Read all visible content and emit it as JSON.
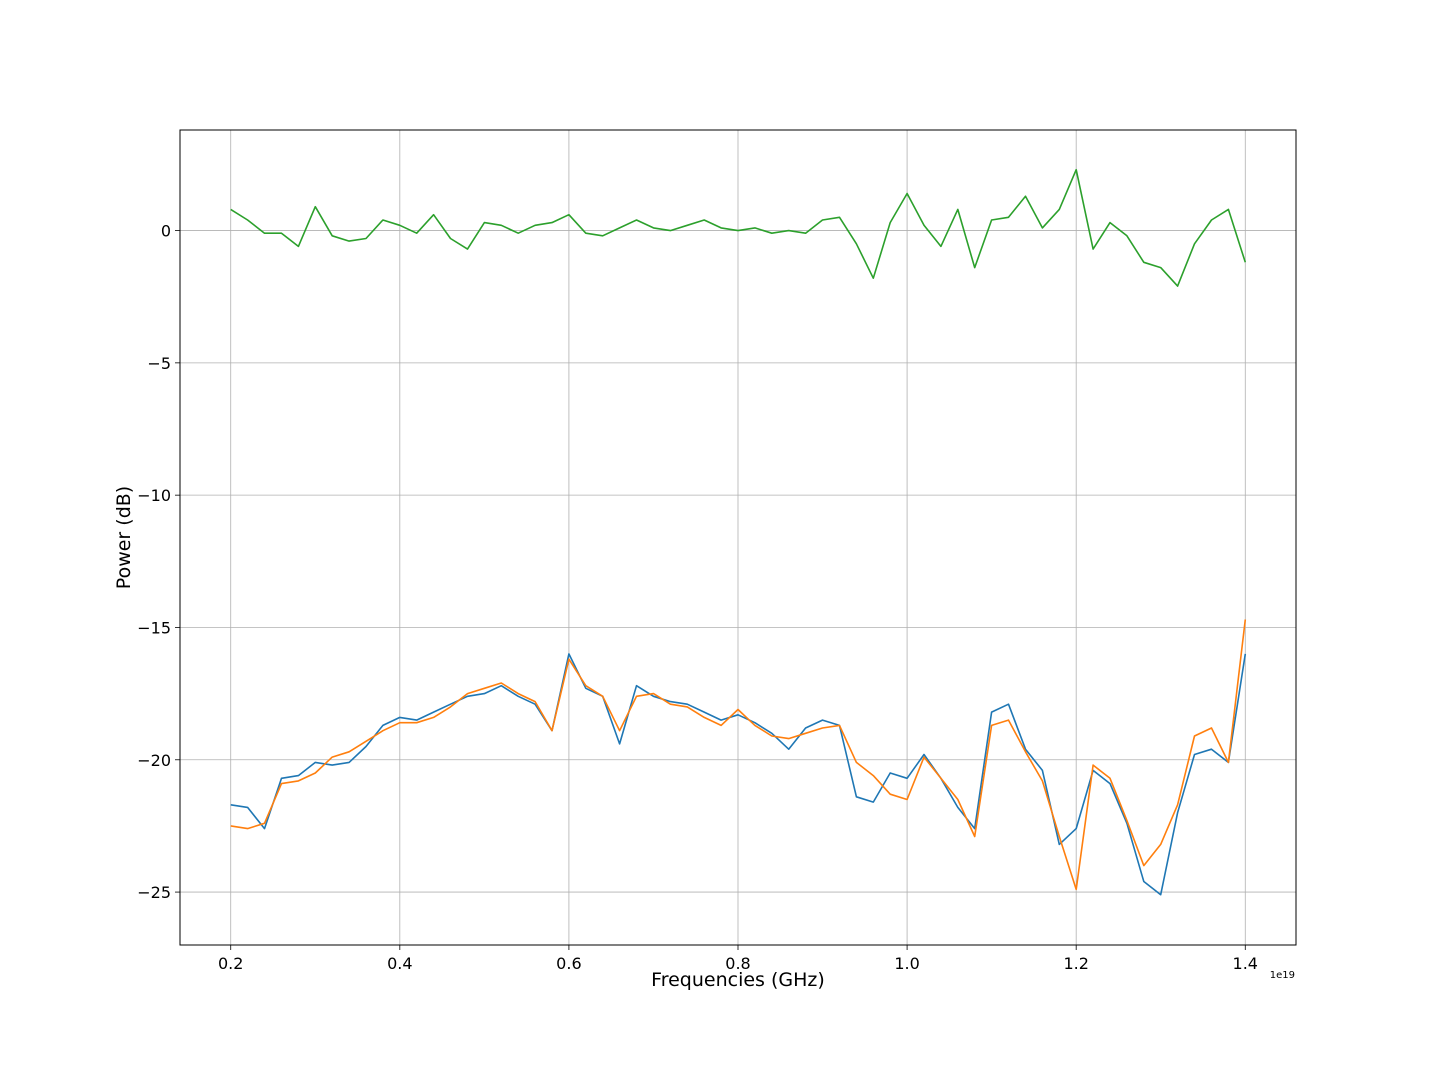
{
  "chart_data": {
    "type": "line",
    "xlabel": "Frequencies (GHz)",
    "ylabel": "Power (dB)",
    "x_offset_label": "1e19",
    "xlim": [
      0.14,
      1.46
    ],
    "ylim": [
      -27.0,
      3.8
    ],
    "grid": true,
    "x_ticks": [
      0.2,
      0.4,
      0.6,
      0.8,
      1.0,
      1.2,
      1.4
    ],
    "x_tick_labels": [
      "0.2",
      "0.4",
      "0.6",
      "0.8",
      "1.0",
      "1.2",
      "1.4"
    ],
    "y_ticks": [
      0,
      -5,
      -10,
      -15,
      -20,
      -25
    ],
    "y_tick_labels": [
      "0",
      "−5",
      "−10",
      "−15",
      "−20",
      "−25"
    ],
    "series": [
      {
        "color": "#1f77b4",
        "x": [
          0.2,
          0.22,
          0.24,
          0.26,
          0.28,
          0.3,
          0.32,
          0.34,
          0.36,
          0.38,
          0.4,
          0.42,
          0.44,
          0.46,
          0.48,
          0.5,
          0.52,
          0.54,
          0.56,
          0.58,
          0.6,
          0.62,
          0.64,
          0.66,
          0.68,
          0.7,
          0.72,
          0.74,
          0.76,
          0.78,
          0.8,
          0.82,
          0.84,
          0.86,
          0.88,
          0.9,
          0.92,
          0.94,
          0.96,
          0.98,
          1.0,
          1.02,
          1.04,
          1.06,
          1.08,
          1.1,
          1.12,
          1.14,
          1.16,
          1.18,
          1.2,
          1.22,
          1.24,
          1.26,
          1.28,
          1.3,
          1.32,
          1.34,
          1.36,
          1.38,
          1.4
        ],
        "values": [
          -21.7,
          -21.8,
          -22.6,
          -20.7,
          -20.6,
          -20.1,
          -20.2,
          -20.1,
          -19.5,
          -18.7,
          -18.4,
          -18.5,
          -18.2,
          -17.9,
          -17.6,
          -17.5,
          -17.2,
          -17.6,
          -17.9,
          -18.9,
          -16.0,
          -17.3,
          -17.6,
          -19.4,
          -17.2,
          -17.6,
          -17.8,
          -17.9,
          -18.2,
          -18.5,
          -18.3,
          -18.6,
          -19.0,
          -19.6,
          -18.8,
          -18.5,
          -18.7,
          -21.4,
          -21.6,
          -20.5,
          -20.7,
          -19.8,
          -20.7,
          -21.8,
          -22.6,
          -18.2,
          -17.9,
          -19.6,
          -20.4,
          -23.2,
          -22.6,
          -20.4,
          -20.9,
          -22.4,
          -24.6,
          -25.1,
          -22.0,
          -19.8,
          -19.6,
          -20.1,
          -16.0
        ]
      },
      {
        "color": "#ff7f0e",
        "x": [
          0.2,
          0.22,
          0.24,
          0.26,
          0.28,
          0.3,
          0.32,
          0.34,
          0.36,
          0.38,
          0.4,
          0.42,
          0.44,
          0.46,
          0.48,
          0.5,
          0.52,
          0.54,
          0.56,
          0.58,
          0.6,
          0.62,
          0.64,
          0.66,
          0.68,
          0.7,
          0.72,
          0.74,
          0.76,
          0.78,
          0.8,
          0.82,
          0.84,
          0.86,
          0.88,
          0.9,
          0.92,
          0.94,
          0.96,
          0.98,
          1.0,
          1.02,
          1.04,
          1.06,
          1.08,
          1.1,
          1.12,
          1.14,
          1.16,
          1.18,
          1.2,
          1.22,
          1.24,
          1.26,
          1.28,
          1.3,
          1.32,
          1.34,
          1.36,
          1.38,
          1.4
        ],
        "values": [
          -22.5,
          -22.6,
          -22.4,
          -20.9,
          -20.8,
          -20.5,
          -19.9,
          -19.7,
          -19.3,
          -18.9,
          -18.6,
          -18.6,
          -18.4,
          -18.0,
          -17.5,
          -17.3,
          -17.1,
          -17.5,
          -17.8,
          -18.9,
          -16.2,
          -17.2,
          -17.6,
          -18.9,
          -17.6,
          -17.5,
          -17.9,
          -18.0,
          -18.4,
          -18.7,
          -18.1,
          -18.7,
          -19.1,
          -19.2,
          -19.0,
          -18.8,
          -18.7,
          -20.1,
          -20.6,
          -21.3,
          -21.5,
          -19.9,
          -20.7,
          -21.5,
          -22.9,
          -18.7,
          -18.5,
          -19.7,
          -20.8,
          -22.9,
          -24.9,
          -20.2,
          -20.7,
          -22.3,
          -24.0,
          -23.2,
          -21.7,
          -19.1,
          -18.8,
          -20.1,
          -14.7
        ]
      },
      {
        "color": "#2ca02c",
        "x": [
          0.2,
          0.22,
          0.24,
          0.26,
          0.28,
          0.3,
          0.32,
          0.34,
          0.36,
          0.38,
          0.4,
          0.42,
          0.44,
          0.46,
          0.48,
          0.5,
          0.52,
          0.54,
          0.56,
          0.58,
          0.6,
          0.62,
          0.64,
          0.66,
          0.68,
          0.7,
          0.72,
          0.74,
          0.76,
          0.78,
          0.8,
          0.82,
          0.84,
          0.86,
          0.88,
          0.9,
          0.92,
          0.94,
          0.96,
          0.98,
          1.0,
          1.02,
          1.04,
          1.06,
          1.08,
          1.1,
          1.12,
          1.14,
          1.16,
          1.18,
          1.2,
          1.22,
          1.24,
          1.26,
          1.28,
          1.3,
          1.32,
          1.34,
          1.36,
          1.38,
          1.4
        ],
        "values": [
          0.8,
          0.4,
          -0.1,
          -0.1,
          -0.6,
          0.9,
          -0.2,
          -0.4,
          -0.3,
          0.4,
          0.2,
          -0.1,
          0.6,
          -0.3,
          -0.7,
          0.3,
          0.2,
          -0.1,
          0.2,
          0.3,
          0.6,
          -0.1,
          -0.2,
          0.1,
          0.4,
          0.1,
          0.0,
          0.2,
          0.4,
          0.1,
          0.0,
          0.1,
          -0.1,
          0.0,
          -0.1,
          0.4,
          0.5,
          -0.5,
          -1.8,
          0.3,
          1.4,
          0.2,
          -0.6,
          0.8,
          -1.4,
          0.4,
          0.5,
          1.3,
          0.1,
          0.8,
          2.3,
          -0.7,
          0.3,
          -0.2,
          -1.2,
          -1.4,
          -2.1,
          -0.5,
          0.4,
          0.8,
          -1.2
        ]
      }
    ]
  }
}
